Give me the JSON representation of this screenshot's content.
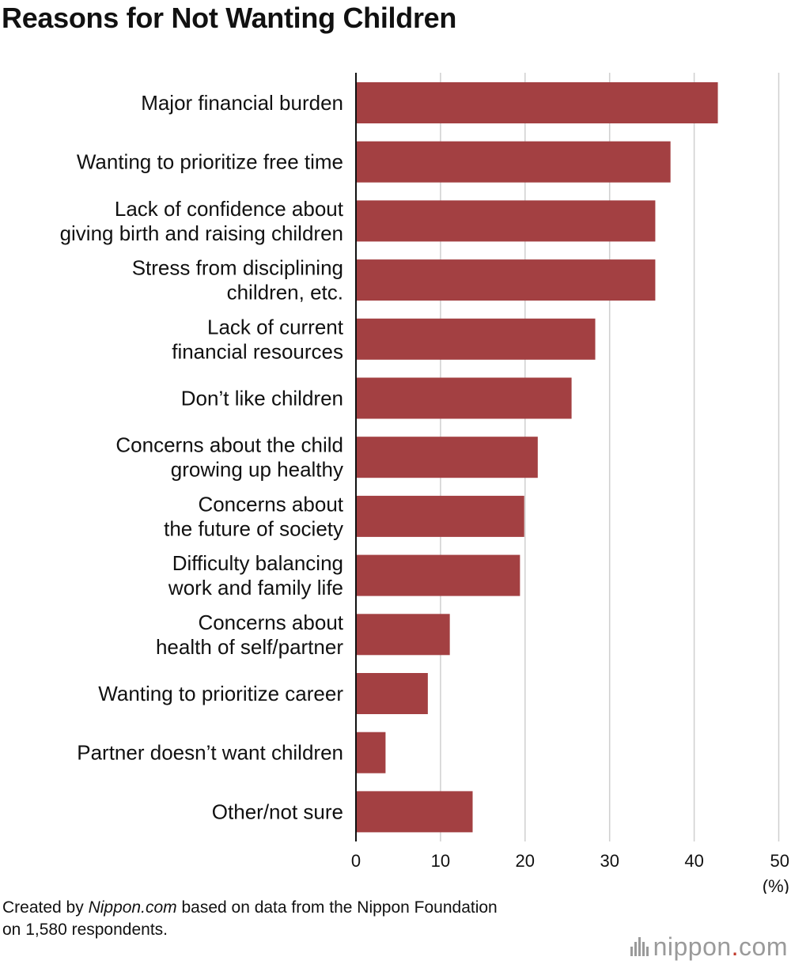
{
  "title": "Reasons for Not Wanting Children",
  "chart_data": {
    "type": "bar",
    "orientation": "horizontal",
    "categories": [
      [
        "Major financial burden"
      ],
      [
        "Wanting to prioritize free time"
      ],
      [
        "Lack of confidence about",
        "giving birth and raising children"
      ],
      [
        "Stress from disciplining",
        "children, etc."
      ],
      [
        "Lack of current",
        "financial resources"
      ],
      [
        "Don’t like children"
      ],
      [
        "Concerns about the child",
        "growing up healthy"
      ],
      [
        "Concerns about",
        "the future of society"
      ],
      [
        "Difficulty balancing",
        "work and family life"
      ],
      [
        "Concerns about",
        "health of self/partner"
      ],
      [
        "Wanting to prioritize career"
      ],
      [
        "Partner doesn’t want children"
      ],
      [
        "Other/not sure"
      ]
    ],
    "values": [
      42.8,
      37.2,
      35.4,
      35.4,
      28.3,
      25.5,
      21.5,
      19.9,
      19.4,
      11.1,
      8.5,
      3.5,
      13.8
    ],
    "xlim": [
      0,
      50
    ],
    "xticks": [
      "0",
      "10",
      "20",
      "30",
      "40",
      "50"
    ],
    "xunit": "(%)",
    "grid": true,
    "bar_color": "#a34042"
  },
  "footer": {
    "prefix": "Created by ",
    "source_name": "Nippon.com",
    "suffix_line1": " based on data from the Nippon Foundation",
    "line2": "on 1,580 respondents."
  },
  "logo": {
    "text_main": "nippon",
    "text_dot": ".",
    "text_end": "com"
  }
}
